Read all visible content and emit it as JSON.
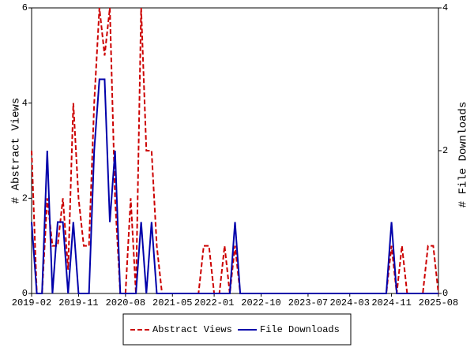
{
  "chart_data": {
    "type": "line",
    "categories": [
      "2019-02",
      null,
      null,
      null,
      null,
      null,
      null,
      null,
      null,
      "2019-11",
      null,
      null,
      null,
      null,
      null,
      null,
      null,
      null,
      "2020-08",
      null,
      null,
      null,
      null,
      null,
      null,
      null,
      null,
      "2021-05",
      null,
      null,
      null,
      null,
      null,
      null,
      null,
      "2022-01",
      null,
      null,
      null,
      null,
      null,
      null,
      null,
      null,
      "2022-10",
      null,
      null,
      null,
      null,
      null,
      null,
      null,
      null,
      "2023-07",
      null,
      null,
      null,
      null,
      null,
      null,
      null,
      "2024-03",
      null,
      null,
      null,
      null,
      null,
      null,
      null,
      "2024-11",
      null,
      null,
      null,
      null,
      null,
      null,
      null,
      null,
      "2025-08"
    ],
    "ylabel": "# Abstract Views",
    "y2label": "# File Downloads",
    "ylim": [
      0,
      6
    ],
    "yticks": [
      0,
      2,
      4,
      6
    ],
    "y2lim": [
      0,
      4
    ],
    "y2ticks": [
      0,
      2,
      4
    ],
    "legend": "bottom",
    "series": [
      {
        "name": "Abstract Views",
        "color": "#cc0000",
        "dashed": true,
        "values": [
          3,
          0,
          0,
          2,
          1,
          1,
          2,
          0.5,
          4,
          2,
          1,
          1,
          4,
          6,
          5,
          6,
          2,
          0,
          0,
          2,
          0,
          6,
          3,
          3,
          1,
          0,
          0,
          0,
          0,
          0,
          0,
          0,
          0,
          1,
          1,
          0,
          0,
          1,
          0,
          1,
          0,
          0,
          0,
          0,
          0,
          0,
          0,
          0,
          0,
          0,
          0,
          0,
          0,
          0,
          0,
          0,
          0,
          0,
          0,
          0,
          0,
          0,
          0,
          0,
          0,
          0,
          0,
          0,
          0,
          1,
          0,
          1,
          0,
          0,
          0,
          0,
          1,
          1,
          0
        ]
      },
      {
        "name": "File Downloads",
        "color": "#0000aa",
        "dashed": false,
        "axis": "y2",
        "values": [
          1,
          0,
          0,
          2,
          0,
          1,
          1,
          0,
          1,
          0,
          0,
          0,
          2,
          3,
          3,
          1,
          2,
          0,
          0,
          0,
          0,
          1,
          0,
          1,
          0,
          0,
          0,
          0,
          0,
          0,
          0,
          0,
          0,
          0,
          0,
          0,
          0,
          0,
          0,
          1,
          0,
          0,
          0,
          0,
          0,
          0,
          0,
          0,
          0,
          0,
          0,
          0,
          0,
          0,
          0,
          0,
          0,
          0,
          0,
          0,
          0,
          0,
          0,
          0,
          0,
          0,
          0,
          0,
          0,
          1,
          0,
          0,
          0,
          0,
          0,
          0,
          0,
          0,
          0
        ]
      }
    ]
  }
}
